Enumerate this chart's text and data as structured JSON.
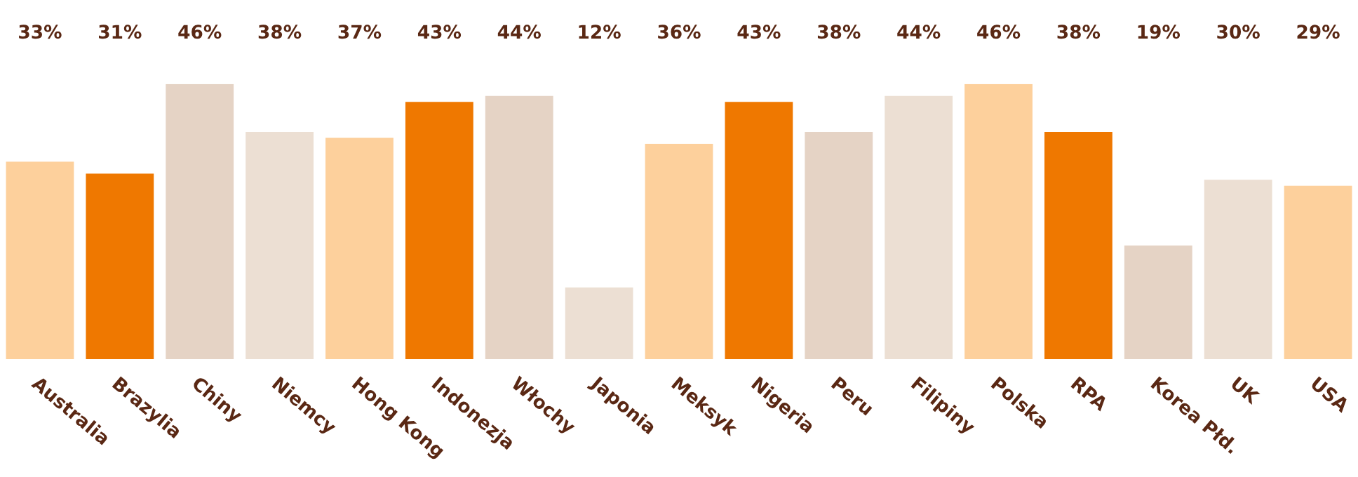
{
  "chart_data": {
    "type": "bar",
    "categories": [
      "Australia",
      "Brazylia",
      "Chiny",
      "Niemcy",
      "Hong Kong",
      "Indonezja",
      "Włochy",
      "Japonia",
      "Meksyk",
      "Nigeria",
      "Peru",
      "Filipiny",
      "Polska",
      "RPA",
      "Korea Płd.",
      "UK",
      "USA"
    ],
    "values": [
      33,
      31,
      46,
      38,
      37,
      43,
      44,
      12,
      36,
      43,
      38,
      44,
      46,
      38,
      19,
      30,
      29
    ],
    "colors": [
      "#fdd09c",
      "#ef7800",
      "#e5d3c5",
      "#ecdfd3",
      "#fdd09c",
      "#ef7800",
      "#e5d3c5",
      "#ecdfd3",
      "#fdd09c",
      "#ef7800",
      "#e5d3c5",
      "#ecdfd3",
      "#fdd09c",
      "#ef7800",
      "#e5d3c5",
      "#ecdfd3",
      "#fdd09c"
    ],
    "value_labels": [
      "33%",
      "31%",
      "46%",
      "38%",
      "37%",
      "43%",
      "44%",
      "12%",
      "36%",
      "43%",
      "38%",
      "44%",
      "46%",
      "38%",
      "19%",
      "30%",
      "29%"
    ],
    "grid": false,
    "legend": false
  }
}
